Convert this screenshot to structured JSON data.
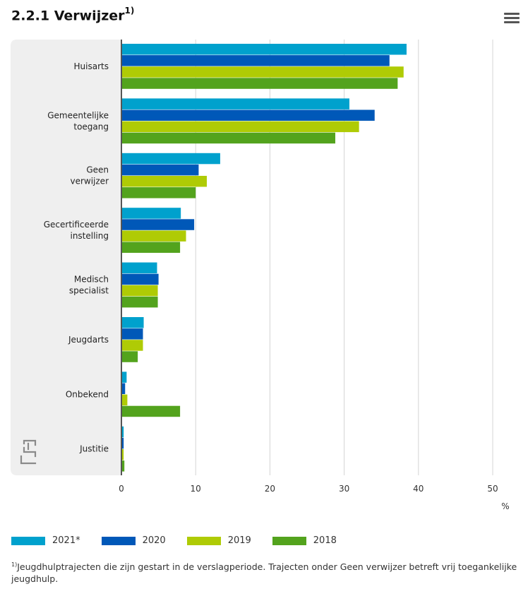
{
  "header": {
    "title": "2.2.1 Verwijzer",
    "title_note": "1)",
    "menu_icon": "hamburger-menu-icon"
  },
  "chart_data": {
    "type": "bar",
    "orientation": "horizontal",
    "categories": [
      "Huisarts",
      "Gemeentelijke toegang",
      "Geen verwijzer",
      "Gecertificeerde instelling",
      "Medisch specialist",
      "Jeugdarts",
      "Onbekend",
      "Justitie"
    ],
    "category_lines": [
      [
        "Huisarts"
      ],
      [
        "Gemeentelijke",
        "toegang"
      ],
      [
        "Geen",
        "verwijzer"
      ],
      [
        "Gecertificeerde",
        "instelling"
      ],
      [
        "Medisch",
        "specialist"
      ],
      [
        "Jeugdarts"
      ],
      [
        "Onbekend"
      ],
      [
        "Justitie"
      ]
    ],
    "series": [
      {
        "name": "2021*",
        "color": "#00a1cd",
        "values": [
          38.4,
          30.7,
          13.3,
          8.0,
          4.8,
          3.0,
          0.7,
          0.3
        ]
      },
      {
        "name": "2020",
        "color": "#0058b8",
        "values": [
          36.1,
          34.1,
          10.4,
          9.8,
          5.0,
          2.9,
          0.5,
          0.3
        ]
      },
      {
        "name": "2019",
        "color": "#afcb05",
        "values": [
          38.0,
          32.0,
          11.5,
          8.7,
          4.9,
          2.9,
          0.8,
          0.3
        ]
      },
      {
        "name": "2018",
        "color": "#53a31d",
        "values": [
          37.2,
          28.8,
          10.0,
          7.9,
          4.9,
          2.2,
          7.9,
          0.4
        ]
      }
    ],
    "xlim": [
      0,
      50
    ],
    "xticks": [
      0,
      10,
      20,
      30,
      40,
      50
    ],
    "xtick_labels": [
      "0",
      "10",
      "20",
      "30",
      "40",
      "50"
    ],
    "xlabel": "%",
    "grid": true,
    "legend_position": "bottom-left"
  },
  "footnote": {
    "marker": "1)",
    "text": "Jeugdhulptrajecten die zijn gestart in de verslagperiode. Trajecten onder Geen verwijzer betreft vrij toegankelijke jeugdhulp."
  }
}
